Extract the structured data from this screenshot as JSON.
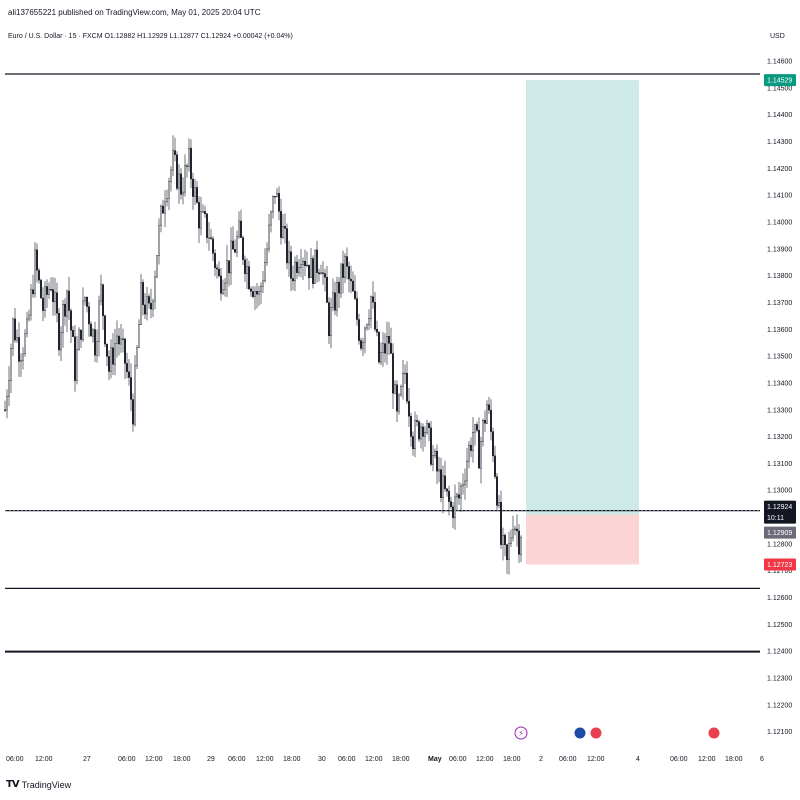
{
  "header": {
    "published_note": "ali137655221 published on TradingView.com, May 01, 2025 20:04 UTC",
    "symbol_info": "Euro / U.S. Dollar · 15 · FXCM  O1.12882  H1.12929  L1.12877  C1.12924  +0.00042 (+0.04%)",
    "currency": "USD"
  },
  "footer": {
    "brand": "TradingView"
  },
  "colors": {
    "candle": "#131722",
    "take_profit_fill": "#cdeae6",
    "stop_loss_fill": "#fbd5d5",
    "tp_label_bg": "#089981",
    "sl_label_bg": "#f23645",
    "last_price_bg": "#131722",
    "entry_label_bg": "#6b6b78"
  },
  "chart_data": {
    "type": "candlestick",
    "y_range": [
      1.1205,
      1.1466
    ],
    "y_ticks": [
      "1.14600",
      "1.14500",
      "1.14400",
      "1.14300",
      "1.14200",
      "1.14100",
      "1.14000",
      "1.13900",
      "1.13800",
      "1.13700",
      "1.13600",
      "1.13500",
      "1.13400",
      "1.13300",
      "1.13200",
      "1.13100",
      "1.13000",
      "1.12900",
      "1.12800",
      "1.12700",
      "1.12600",
      "1.12500",
      "1.12400",
      "1.12300",
      "1.12200",
      "1.12100"
    ],
    "x_ticks": [
      "06:00",
      "12:00",
      "27",
      "06:00",
      "12:00",
      "18:00",
      "29",
      "06:00",
      "12:00",
      "18:00",
      "30",
      "06:00",
      "12:00",
      "18:00",
      "May",
      "06:00",
      "12:00",
      "18:00",
      "2",
      "06:00",
      "12:00",
      "4",
      "06:00",
      "12:00",
      "18:00",
      "6"
    ],
    "horizontal_levels": [
      1.14552,
      1.12924,
      1.12634,
      1.12398
    ],
    "position": {
      "take_profit": 1.14529,
      "entry": 1.12909,
      "stop_loss": 1.12723
    },
    "price_labels": {
      "take_profit": "1.14529",
      "last_price": "1.12924",
      "countdown": "10:11",
      "entry": "1.12909",
      "stop_loss": "1.12723"
    },
    "waypoints": [
      [
        0,
        1.133
      ],
      [
        8,
        1.1362
      ],
      [
        15,
        1.1352
      ],
      [
        22,
        1.1358
      ],
      [
        30,
        1.1385
      ],
      [
        38,
        1.1368
      ],
      [
        46,
        1.1378
      ],
      [
        54,
        1.1358
      ],
      [
        62,
        1.1375
      ],
      [
        70,
        1.1345
      ],
      [
        80,
        1.1372
      ],
      [
        90,
        1.1355
      ],
      [
        96,
        1.1374
      ],
      [
        104,
        1.1345
      ],
      [
        112,
        1.1358
      ],
      [
        120,
        1.1348
      ],
      [
        128,
        1.133
      ],
      [
        136,
        1.1372
      ],
      [
        145,
        1.1365
      ],
      [
        153,
        1.1393
      ],
      [
        160,
        1.1412
      ],
      [
        168,
        1.1422
      ],
      [
        176,
        1.1413
      ],
      [
        184,
        1.1422
      ],
      [
        194,
        1.1402
      ],
      [
        204,
        1.1396
      ],
      [
        214,
        1.1378
      ],
      [
        224,
        1.1385
      ],
      [
        234,
        1.1395
      ],
      [
        244,
        1.138
      ],
      [
        254,
        1.1372
      ],
      [
        262,
        1.139
      ],
      [
        270,
        1.1412
      ],
      [
        278,
        1.1396
      ],
      [
        286,
        1.138
      ],
      [
        296,
        1.139
      ],
      [
        306,
        1.1382
      ],
      [
        316,
        1.1386
      ],
      [
        324,
        1.1362
      ],
      [
        332,
        1.1374
      ],
      [
        340,
        1.1384
      ],
      [
        348,
        1.1372
      ],
      [
        356,
        1.1356
      ],
      [
        366,
        1.1372
      ],
      [
        374,
        1.1348
      ],
      [
        384,
        1.1356
      ],
      [
        392,
        1.1326
      ],
      [
        400,
        1.1344
      ],
      [
        408,
        1.132
      ],
      [
        418,
        1.1326
      ],
      [
        428,
        1.1312
      ],
      [
        436,
        1.1302
      ],
      [
        446,
        1.1293
      ],
      [
        454,
        1.1297
      ],
      [
        462,
        1.1312
      ],
      [
        468,
        1.1322
      ],
      [
        474,
        1.1314
      ],
      [
        482,
        1.1332
      ],
      [
        488,
        1.1316
      ],
      [
        492,
        1.13
      ],
      [
        496,
        1.128
      ],
      [
        502,
        1.1272
      ],
      [
        508,
        1.129
      ],
      [
        514,
        1.1282
      ],
      [
        520,
        1.1292
      ]
    ]
  }
}
